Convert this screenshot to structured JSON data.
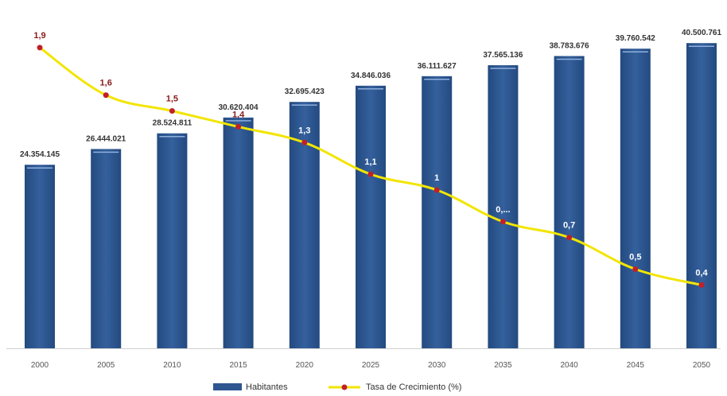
{
  "chart_data": {
    "type": "bar",
    "title": "",
    "categories": [
      "2000",
      "2005",
      "2010",
      "2015",
      "2020",
      "2025",
      "2030",
      "2035",
      "2040",
      "2045",
      "2050"
    ],
    "series": [
      {
        "name": "Habitantes",
        "type": "bar",
        "axis": "left",
        "values": [
          24354145,
          26444021,
          28524811,
          30620404,
          32695423,
          34846036,
          36111627,
          37565136,
          38783676,
          39760542,
          40500761
        ],
        "labels": [
          "24.354.145",
          "26.444.021",
          "28.524.811",
          "30.620.404",
          "32.695.423",
          "34.846.036",
          "36.111.627",
          "37.565.136",
          "38.783.676",
          "39.760.542",
          "40.500.761"
        ],
        "color": "#2e5690"
      },
      {
        "name": "Tasa de Crecimiento (%)",
        "type": "line",
        "axis": "right",
        "values": [
          1.9,
          1.6,
          1.5,
          1.4,
          1.3,
          1.1,
          1.0,
          0.8,
          0.7,
          0.5,
          0.4
        ],
        "labels": [
          "1,9",
          "1,6",
          "1,5",
          "1,4",
          "1,3",
          "1,1",
          "1",
          "0,...",
          "0,7",
          "0,5",
          "0,4"
        ],
        "color": "#f2e500",
        "marker_color": "#c0202a"
      }
    ],
    "y_left_range": [
      0,
      42000000
    ],
    "y_right_range": [
      0,
      2
    ],
    "grid": false,
    "legend_position": "bottom"
  }
}
